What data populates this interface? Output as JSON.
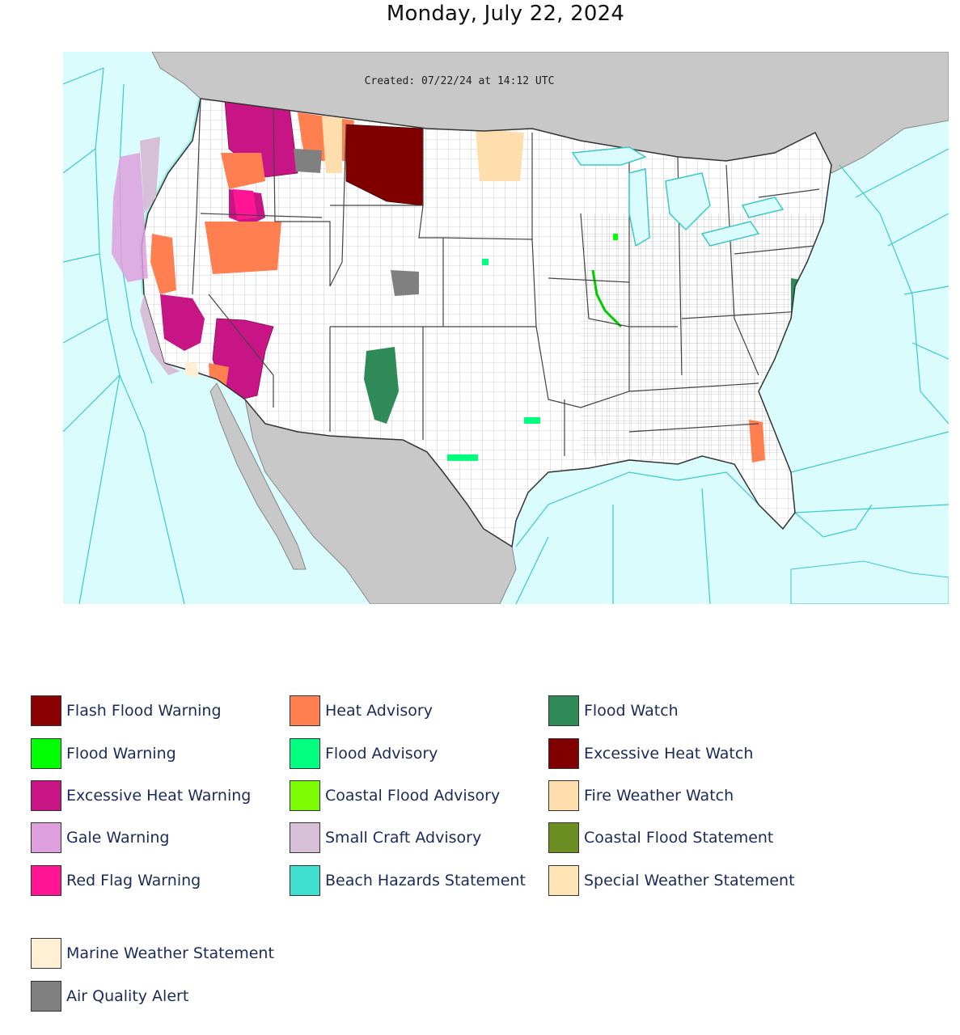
{
  "page": {
    "title": "Monday, July 22, 2024"
  },
  "map": {
    "created_text": "Created: 07/22/24 at 14:12 UTC",
    "colors": {
      "ocean": "#dbfcfc",
      "land_other": "#c8c8c8",
      "us_land": "#ffffff",
      "marine_zone_line": "#3cc8c8",
      "county_line": "#9a9a9a",
      "state_line": "#444444"
    }
  },
  "legend": {
    "columns": [
      [
        {
          "label": "Flash Flood Warning",
          "color": "#8b0000"
        },
        {
          "label": "Flood Warning",
          "color": "#00ff00"
        },
        {
          "label": "Excessive Heat Warning",
          "color": "#c71585"
        },
        {
          "label": "Gale Warning",
          "color": "#dda0dd"
        },
        {
          "label": "Red Flag Warning",
          "color": "#ff1493"
        }
      ],
      [
        {
          "label": "Heat Advisory",
          "color": "#ff7f50"
        },
        {
          "label": "Flood Advisory",
          "color": "#00ff7f"
        },
        {
          "label": "Coastal Flood Advisory",
          "color": "#7cfc00"
        },
        {
          "label": "Small Craft Advisory",
          "color": "#d8bfd8"
        },
        {
          "label": "Beach Hazards Statement",
          "color": "#40e0d0"
        }
      ],
      [
        {
          "label": "Flood Watch",
          "color": "#2e8b57"
        },
        {
          "label": "Excessive Heat Watch",
          "color": "#800000"
        },
        {
          "label": "Fire Weather Watch",
          "color": "#ffdead"
        },
        {
          "label": "Coastal Flood Statement",
          "color": "#6b8e23"
        },
        {
          "label": "Special Weather Statement",
          "color": "#ffe4b5"
        }
      ]
    ],
    "extra": [
      {
        "label": "Marine Weather Statement",
        "color": "#ffefd5"
      },
      {
        "label": "Air Quality Alert",
        "color": "#808080"
      }
    ]
  }
}
